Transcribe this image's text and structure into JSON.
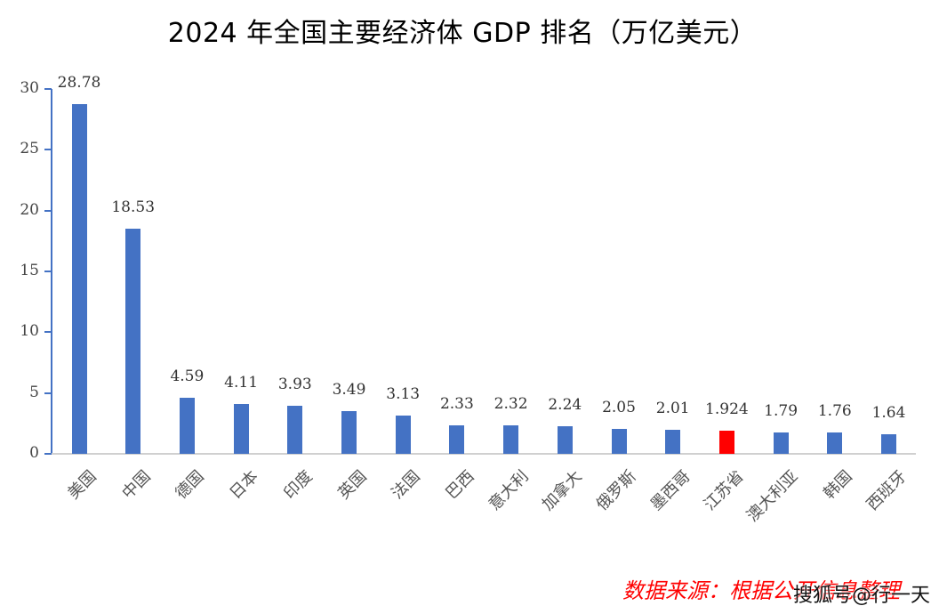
{
  "chart_data": {
    "type": "bar",
    "title": "2024 年全国主要经济体 GDP 排名（万亿美元）",
    "xlabel": "",
    "ylabel": "",
    "ylim": [
      0,
      30
    ],
    "yticks": [
      0,
      5,
      10,
      15,
      20,
      25,
      30
    ],
    "grid": false,
    "legend": null,
    "categories": [
      "美国",
      "中国",
      "德国",
      "日本",
      "印度",
      "英国",
      "法国",
      "巴西",
      "意大利",
      "加拿大",
      "俄罗斯",
      "墨西哥",
      "江苏省",
      "澳大利亚",
      "韩国",
      "西班牙"
    ],
    "values": [
      28.78,
      18.53,
      4.59,
      4.11,
      3.93,
      3.49,
      3.13,
      2.33,
      2.32,
      2.24,
      2.05,
      2.01,
      1.924,
      1.79,
      1.76,
      1.64
    ],
    "value_labels": [
      "28.78",
      "18.53",
      "4.59",
      "4.11",
      "3.93",
      "3.49",
      "3.13",
      "2.33",
      "2.32",
      "2.24",
      "2.05",
      "2.01",
      "1.924",
      "1.79",
      "1.76",
      "1.64"
    ],
    "highlight_index": 12,
    "colors": {
      "bar": "#4472c4",
      "highlight": "#ff0000"
    }
  },
  "annotations": {
    "source": "数据来源：根据公开信息整理",
    "watermark": "搜狐号@行一天"
  }
}
